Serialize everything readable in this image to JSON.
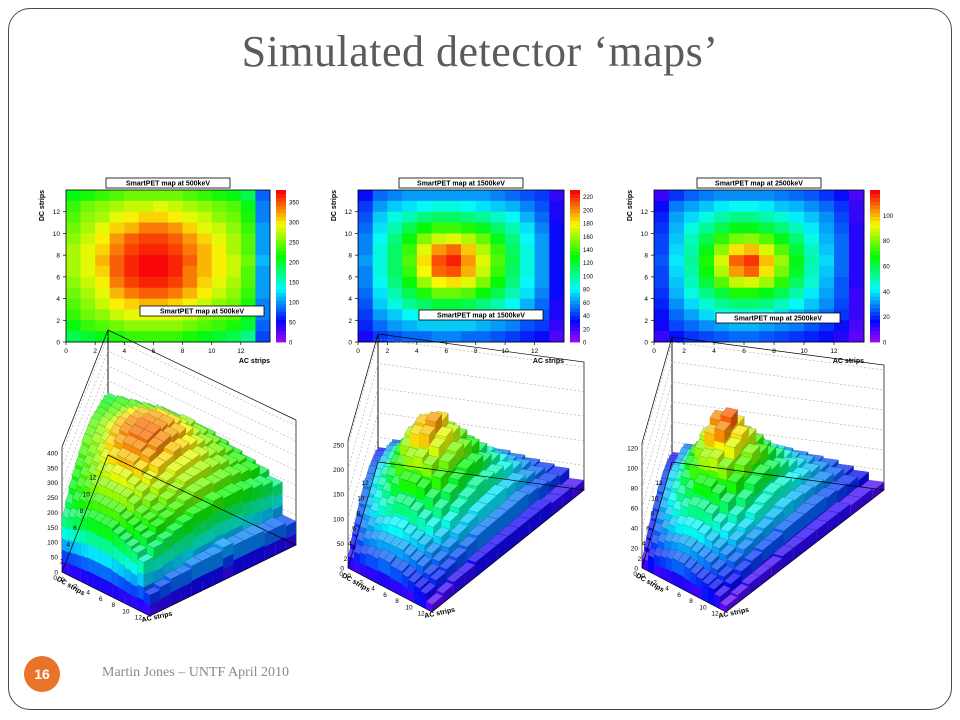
{
  "slide": {
    "title": "Simulated detector ‘maps’",
    "footer": "Martin Jones – UNTF April 2010",
    "slide_number": "16"
  },
  "colors": {
    "accent": "#e8742a",
    "frame": "#4a4a4a",
    "title": "#5b5b5b"
  },
  "chart_data": [
    {
      "type": "heatmap",
      "title": "SmartPET map at 500keV",
      "xlabel": "AC strips",
      "ylabel": "DC strips",
      "x_ticks": [
        "0",
        "2",
        "4",
        "6",
        "8",
        "10",
        "12"
      ],
      "y_ticks": [
        "0",
        "2",
        "4",
        "6",
        "8",
        "10",
        "12"
      ],
      "zlim": [
        0,
        380
      ],
      "z_ticks": [
        "0",
        "50",
        "100",
        "150",
        "200",
        "250",
        "300",
        "350"
      ],
      "rows": [
        [
          210,
          220,
          230,
          240,
          250,
          250,
          250,
          250,
          240,
          230,
          220,
          210,
          190,
          80
        ],
        [
          230,
          250,
          260,
          270,
          280,
          280,
          290,
          280,
          270,
          260,
          250,
          240,
          210,
          90
        ],
        [
          240,
          260,
          270,
          290,
          300,
          310,
          310,
          300,
          290,
          280,
          260,
          250,
          220,
          90
        ],
        [
          250,
          270,
          290,
          310,
          320,
          340,
          340,
          330,
          310,
          290,
          280,
          260,
          230,
          100
        ],
        [
          260,
          280,
          300,
          330,
          350,
          360,
          360,
          350,
          330,
          310,
          290,
          270,
          240,
          100
        ],
        [
          270,
          290,
          310,
          340,
          360,
          370,
          370,
          360,
          340,
          320,
          300,
          270,
          240,
          100
        ],
        [
          270,
          290,
          320,
          350,
          370,
          380,
          380,
          370,
          350,
          320,
          300,
          280,
          250,
          110
        ],
        [
          270,
          290,
          310,
          350,
          370,
          380,
          380,
          370,
          340,
          320,
          300,
          280,
          240,
          100
        ],
        [
          260,
          280,
          300,
          340,
          360,
          370,
          370,
          360,
          340,
          310,
          290,
          270,
          240,
          100
        ],
        [
          250,
          270,
          290,
          320,
          340,
          350,
          350,
          340,
          320,
          300,
          280,
          260,
          230,
          100
        ],
        [
          240,
          260,
          280,
          300,
          310,
          320,
          320,
          310,
          300,
          280,
          260,
          250,
          220,
          90
        ],
        [
          230,
          250,
          260,
          280,
          290,
          290,
          290,
          290,
          280,
          260,
          250,
          240,
          210,
          90
        ],
        [
          210,
          230,
          240,
          250,
          260,
          260,
          260,
          260,
          250,
          240,
          230,
          220,
          200,
          80
        ],
        [
          190,
          200,
          210,
          220,
          230,
          230,
          230,
          230,
          220,
          210,
          200,
          190,
          170,
          70
        ]
      ]
    },
    {
      "type": "heatmap",
      "title": "SmartPET map at 1500keV",
      "xlabel": "AC strips",
      "ylabel": "DC strips",
      "x_ticks": [
        "0",
        "2",
        "4",
        "6",
        "8",
        "10",
        "12"
      ],
      "y_ticks": [
        "0",
        "2",
        "4",
        "6",
        "8",
        "10",
        "12"
      ],
      "zlim": [
        0,
        230
      ],
      "z_ticks": [
        "0",
        "20",
        "40",
        "60",
        "80",
        "100",
        "120",
        "140",
        "160",
        "180",
        "200",
        "220"
      ],
      "rows": [
        [
          30,
          50,
          55,
          60,
          60,
          60,
          60,
          60,
          60,
          55,
          50,
          45,
          40,
          20
        ],
        [
          40,
          60,
          70,
          75,
          80,
          85,
          85,
          80,
          75,
          70,
          65,
          55,
          45,
          25
        ],
        [
          45,
          70,
          85,
          95,
          105,
          110,
          110,
          105,
          100,
          90,
          80,
          65,
          50,
          25
        ],
        [
          50,
          75,
          95,
          115,
          130,
          140,
          140,
          135,
          125,
          110,
          95,
          75,
          55,
          30
        ],
        [
          55,
          80,
          105,
          130,
          155,
          170,
          175,
          165,
          150,
          125,
          105,
          80,
          60,
          30
        ],
        [
          55,
          85,
          110,
          140,
          175,
          200,
          210,
          190,
          165,
          140,
          110,
          85,
          60,
          30
        ],
        [
          60,
          85,
          110,
          145,
          185,
          215,
          225,
          200,
          175,
          145,
          115,
          85,
          60,
          30
        ],
        [
          55,
          85,
          110,
          140,
          180,
          210,
          215,
          195,
          170,
          140,
          110,
          85,
          60,
          30
        ],
        [
          55,
          80,
          105,
          130,
          160,
          180,
          185,
          175,
          155,
          130,
          105,
          80,
          60,
          30
        ],
        [
          50,
          75,
          95,
          115,
          135,
          150,
          150,
          145,
          130,
          115,
          95,
          75,
          55,
          30
        ],
        [
          45,
          70,
          85,
          100,
          110,
          120,
          120,
          115,
          105,
          95,
          80,
          65,
          50,
          25
        ],
        [
          40,
          60,
          70,
          80,
          85,
          90,
          90,
          85,
          80,
          75,
          65,
          55,
          45,
          25
        ],
        [
          35,
          50,
          60,
          65,
          70,
          70,
          70,
          70,
          65,
          60,
          55,
          45,
          40,
          20
        ],
        [
          25,
          40,
          45,
          50,
          50,
          55,
          55,
          50,
          50,
          45,
          40,
          35,
          30,
          15
        ]
      ]
    },
    {
      "type": "heatmap",
      "title": "SmartPET map at 2500keV",
      "xlabel": "AC strips",
      "ylabel": "DC strips",
      "x_ticks": [
        "0",
        "2",
        "4",
        "6",
        "8",
        "10",
        "12"
      ],
      "y_ticks": [
        "0",
        "2",
        "4",
        "6",
        "8",
        "10",
        "12"
      ],
      "zlim": [
        0,
        120
      ],
      "z_ticks": [
        "0",
        "20",
        "40",
        "60",
        "80",
        "100"
      ],
      "rows": [
        [
          10,
          20,
          25,
          28,
          30,
          30,
          30,
          30,
          28,
          26,
          24,
          20,
          16,
          8
        ],
        [
          15,
          28,
          32,
          36,
          40,
          42,
          42,
          40,
          36,
          34,
          30,
          26,
          20,
          10
        ],
        [
          18,
          32,
          38,
          44,
          50,
          54,
          54,
          50,
          46,
          40,
          36,
          30,
          22,
          10
        ],
        [
          20,
          34,
          44,
          52,
          60,
          66,
          66,
          62,
          56,
          48,
          40,
          32,
          24,
          12
        ],
        [
          22,
          36,
          48,
          60,
          72,
          80,
          82,
          76,
          66,
          56,
          44,
          34,
          26,
          12
        ],
        [
          22,
          38,
          50,
          66,
          82,
          96,
          100,
          90,
          76,
          62,
          48,
          36,
          26,
          12
        ],
        [
          24,
          40,
          52,
          70,
          90,
          110,
          115,
          100,
          84,
          66,
          50,
          38,
          26,
          12
        ],
        [
          22,
          38,
          50,
          68,
          86,
          104,
          110,
          96,
          80,
          64,
          48,
          36,
          26,
          12
        ],
        [
          22,
          36,
          48,
          62,
          76,
          88,
          90,
          84,
          72,
          58,
          46,
          34,
          24,
          12
        ],
        [
          20,
          34,
          44,
          54,
          62,
          70,
          70,
          66,
          60,
          50,
          40,
          32,
          24,
          10
        ],
        [
          18,
          30,
          38,
          46,
          52,
          56,
          56,
          54,
          48,
          42,
          36,
          30,
          22,
          10
        ],
        [
          16,
          26,
          32,
          38,
          42,
          44,
          44,
          42,
          38,
          34,
          30,
          26,
          20,
          10
        ],
        [
          14,
          22,
          26,
          30,
          32,
          34,
          34,
          32,
          30,
          28,
          24,
          20,
          16,
          8
        ],
        [
          10,
          16,
          20,
          22,
          24,
          26,
          26,
          24,
          22,
          20,
          18,
          16,
          12,
          6
        ]
      ]
    },
    {
      "type": "lego3d",
      "title": "SmartPET map at 500keV",
      "xlabel": "AC strips",
      "ylabel": "DC strips",
      "x_ticks": [
        "0",
        "2",
        "4",
        "6",
        "8",
        "10",
        "12"
      ],
      "y_ticks": [
        "0",
        "2",
        "4",
        "6",
        "8",
        "10",
        "12"
      ],
      "zlim": [
        0,
        420
      ],
      "z_ticks": [
        "0",
        "50",
        "100",
        "150",
        "200",
        "250",
        "300",
        "350",
        "400"
      ],
      "source": 0
    },
    {
      "type": "lego3d",
      "title": "SmartPET map at 1500keV",
      "xlabel": "AC strips",
      "ylabel": "DC strips",
      "x_ticks": [
        "0",
        "2",
        "4",
        "6",
        "8",
        "10",
        "12"
      ],
      "y_ticks": [
        "0",
        "2",
        "4",
        "6",
        "8",
        "10",
        "12"
      ],
      "zlim": [
        0,
        260
      ],
      "z_ticks": [
        "0",
        "50",
        "100",
        "150",
        "200",
        "250"
      ],
      "source": 1
    },
    {
      "type": "lego3d",
      "title": "SmartPET map at 2500keV",
      "xlabel": "AC strips",
      "ylabel": "DC strips",
      "x_ticks": [
        "0",
        "2",
        "4",
        "6",
        "8",
        "10",
        "12"
      ],
      "y_ticks": [
        "0",
        "2",
        "4",
        "6",
        "8",
        "10",
        "12"
      ],
      "zlim": [
        0,
        125
      ],
      "z_ticks": [
        "0",
        "20",
        "40",
        "60",
        "80",
        "100",
        "120"
      ],
      "source": 2
    }
  ]
}
